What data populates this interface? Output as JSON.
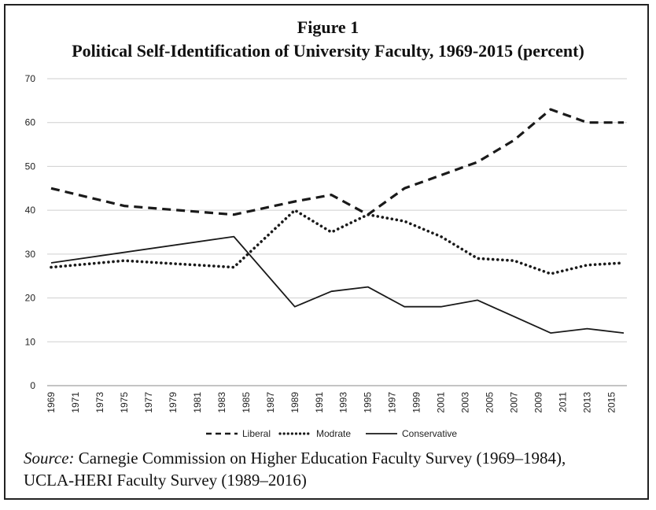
{
  "chart_data": {
    "type": "line",
    "figure_label": "Figure 1",
    "title": "Political Self-Identification of University Faculty, 1969-2015 (percent)",
    "xlabel": "",
    "ylabel": "",
    "ylim": [
      0,
      70
    ],
    "yticks": [
      "0",
      "10",
      "20",
      "30",
      "40",
      "50",
      "60",
      "70"
    ],
    "xlim": [
      1969,
      2016
    ],
    "xticks": [
      "1969",
      "1971",
      "1973",
      "1975",
      "1977",
      "1979",
      "1981",
      "1983",
      "1985",
      "1987",
      "1989",
      "1991",
      "1993",
      "1995",
      "1997",
      "1999",
      "2001",
      "2003",
      "2005",
      "2007",
      "2009",
      "2011",
      "2013",
      "2015"
    ],
    "grid": true,
    "legend_position": "bottom",
    "series": [
      {
        "name": "Liberal",
        "style": "dashed",
        "points": [
          [
            1969,
            45
          ],
          [
            1975,
            41
          ],
          [
            1984,
            39
          ],
          [
            1989,
            42
          ],
          [
            1992,
            43.5
          ],
          [
            1995,
            39
          ],
          [
            1998,
            45
          ],
          [
            2001,
            48
          ],
          [
            2004,
            51
          ],
          [
            2007,
            56
          ],
          [
            2010,
            63
          ],
          [
            2013,
            60
          ],
          [
            2016,
            60
          ]
        ]
      },
      {
        "name": "Modrate",
        "style": "dotted",
        "points": [
          [
            1969,
            27
          ],
          [
            1975,
            28.5
          ],
          [
            1984,
            27
          ],
          [
            1989,
            40
          ],
          [
            1992,
            35
          ],
          [
            1995,
            39
          ],
          [
            1998,
            37.5
          ],
          [
            2001,
            34
          ],
          [
            2004,
            29
          ],
          [
            2007,
            28.5
          ],
          [
            2010,
            25.5
          ],
          [
            2013,
            27.5
          ],
          [
            2016,
            28
          ]
        ]
      },
      {
        "name": "Conservative",
        "style": "solid",
        "points": [
          [
            1969,
            28
          ],
          [
            1984,
            34
          ],
          [
            1989,
            18
          ],
          [
            1992,
            21.5
          ],
          [
            1995,
            22.5
          ],
          [
            1998,
            18
          ],
          [
            2001,
            18
          ],
          [
            2004,
            19.5
          ],
          [
            2010,
            12
          ],
          [
            2013,
            13
          ],
          [
            2016,
            12
          ]
        ]
      }
    ]
  },
  "source": {
    "label": "Source:",
    "line1": "Carnegie Commission on Higher Education Faculty Survey (1969–1984),",
    "line2": "UCLA-HERI Faculty Survey (1989–2016)"
  }
}
